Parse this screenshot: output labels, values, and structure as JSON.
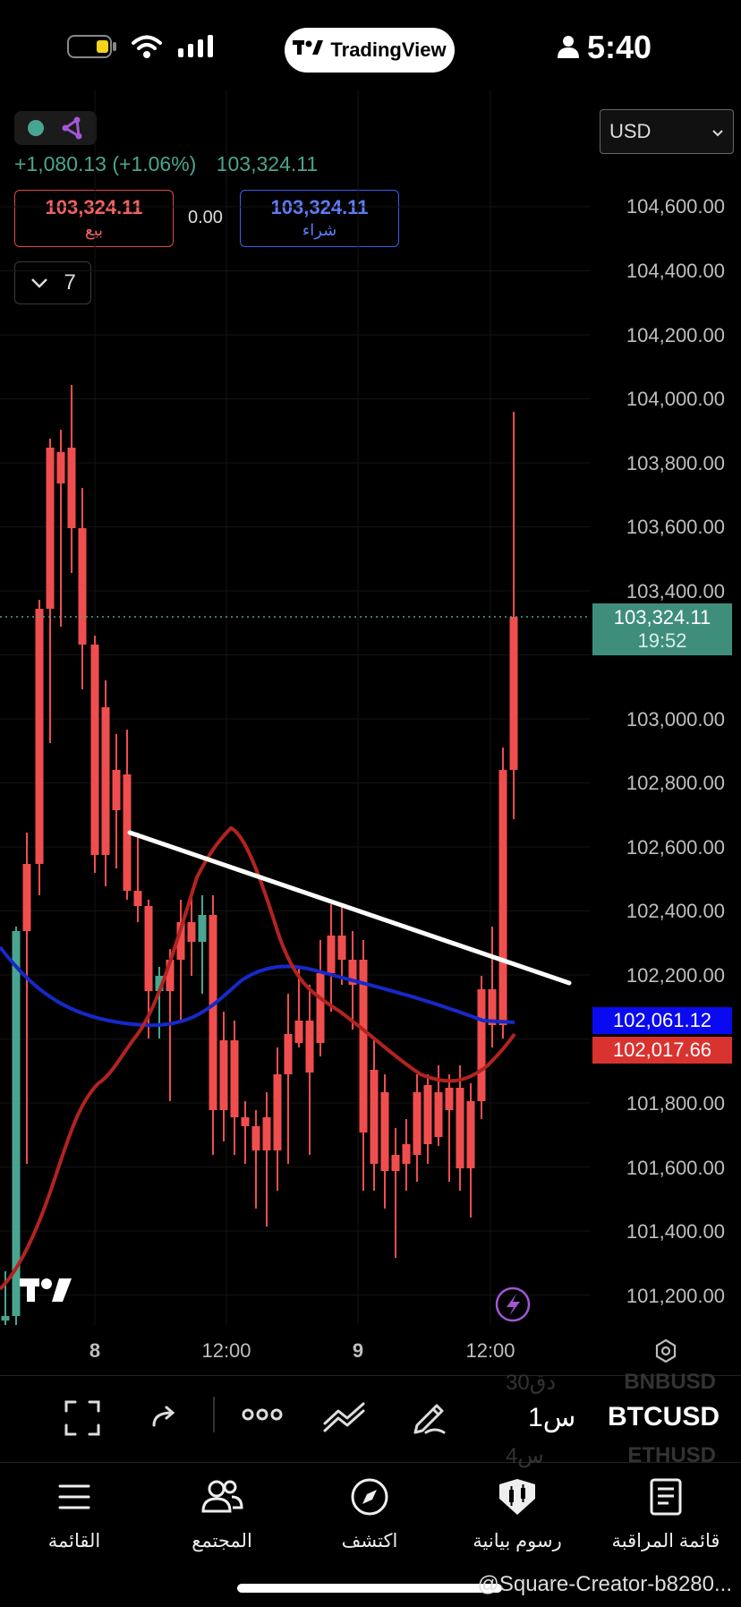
{
  "status_bar": {
    "app_badge": "TradingView",
    "time": "5:40"
  },
  "chart": {
    "currency": "USD",
    "change": "+1,080.13 (+1.06%)",
    "last_price": "103,324.11",
    "sell": {
      "price": "103,324.11",
      "label": "بيع"
    },
    "buy": {
      "price": "103,324.11",
      "label": "شراء"
    },
    "spread": "0.00",
    "indicator_count": "7",
    "price_axis": [
      "104,600.00",
      "104,400.00",
      "104,200.00",
      "104,000.00",
      "103,800.00",
      "103,600.00",
      "103,400.00",
      "103,000.00",
      "102,800.00",
      "102,600.00",
      "102,400.00",
      "102,200.00",
      "101,800.00",
      "101,600.00",
      "101,400.00",
      "101,200.00"
    ],
    "last_price_tag": {
      "price": "103,324.11",
      "countdown": "19:52"
    },
    "ma_blue_tag": "102,061.12",
    "ma_red_tag": "102,017.66",
    "time_axis": [
      "8",
      "12:00",
      "9",
      "12:00"
    ],
    "colors": {
      "up": "#4aa590",
      "down": "#f04e4e",
      "ma_blue": "#1629c9",
      "ma_red": "#b3231f",
      "trendline": "#ffffff"
    }
  },
  "toolbar": {
    "symbol": "BTCUSD",
    "symbol_above": "BNBUSD",
    "symbol_below": "ETHUSD",
    "interval": "1س",
    "interval_above": "30دق",
    "interval_below": "4س",
    "icons": [
      "fullscreen-icon",
      "redo-icon",
      "more-icon",
      "indicators-icon",
      "drawing-pen-icon"
    ]
  },
  "nav": [
    {
      "label": "قائمة المراقبة",
      "icon": "watchlist-icon"
    },
    {
      "label": "رسوم بيانية",
      "icon": "charts-icon"
    },
    {
      "label": "اكتشف",
      "icon": "compass-icon"
    },
    {
      "label": "المجتمع",
      "icon": "community-icon"
    },
    {
      "label": "القائمة",
      "icon": "menu-icon"
    }
  ],
  "watermark": "@Square-Creator-b8280..."
}
